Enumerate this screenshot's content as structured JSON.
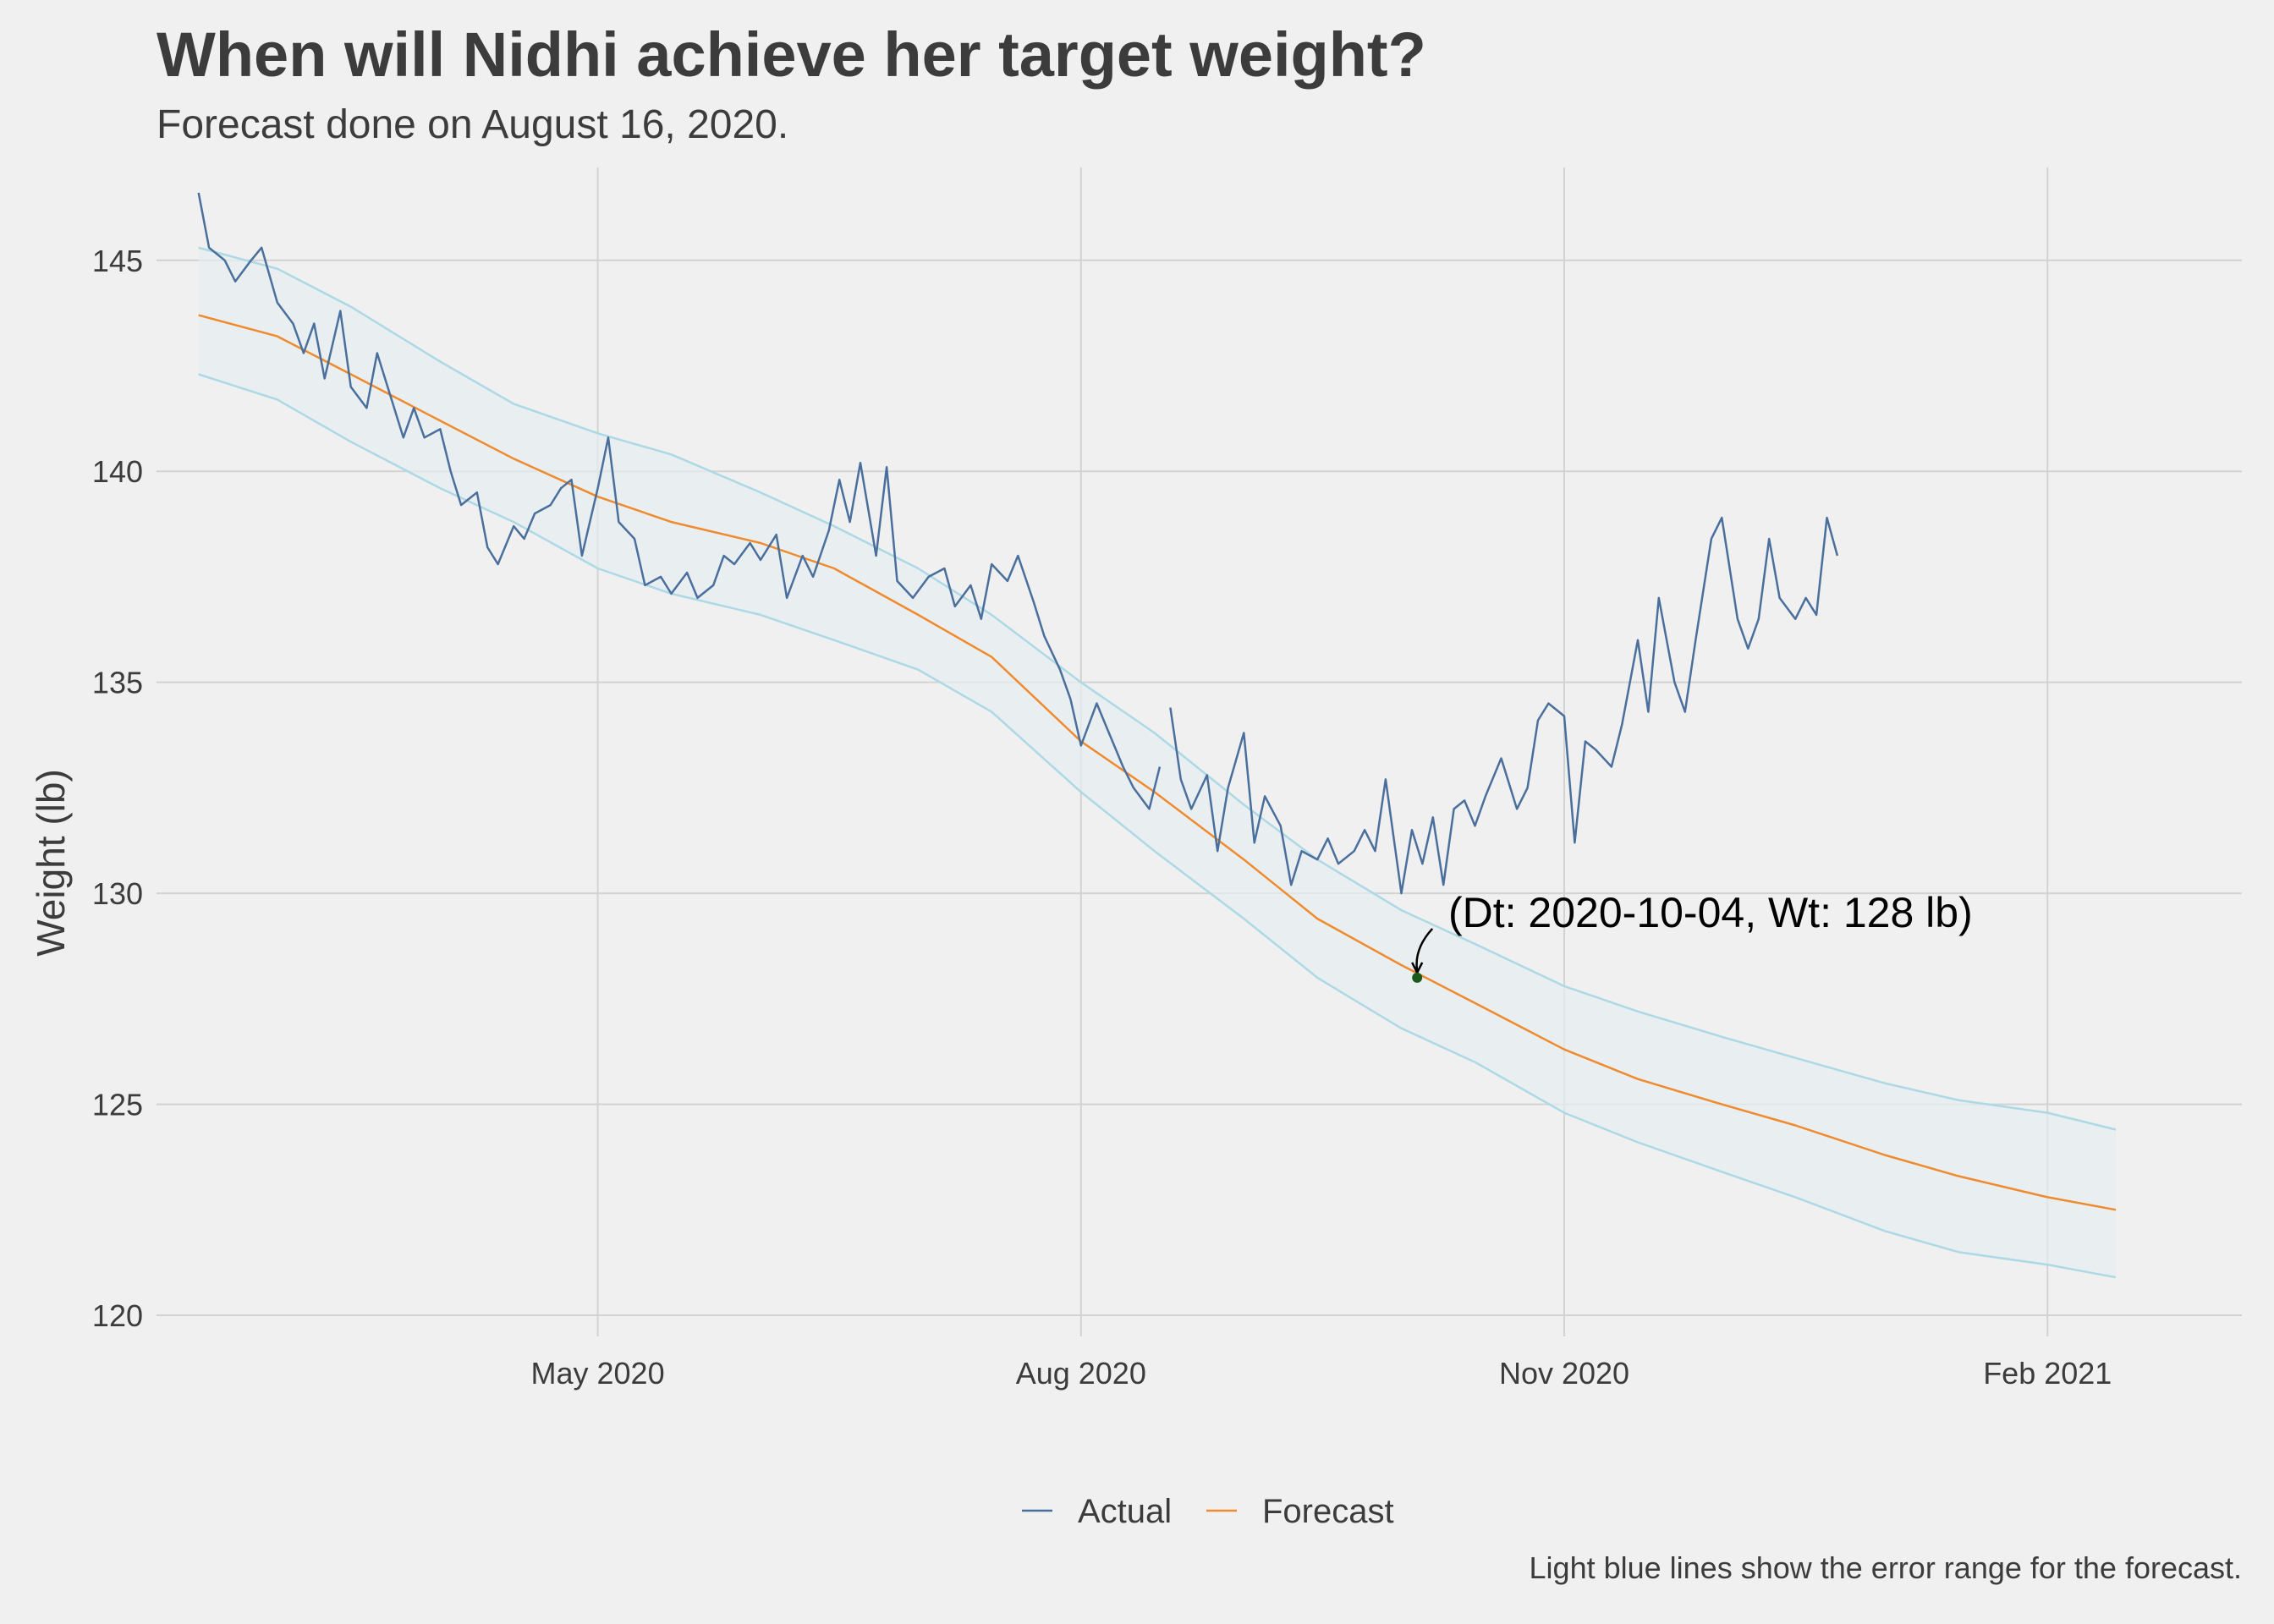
{
  "title": "When will Nidhi achieve her target weight?",
  "subtitle": "Forecast done on August 16, 2020.",
  "caption": "Light blue lines show the error range for the forecast.",
  "chart_data": {
    "type": "line",
    "title": "When will Nidhi achieve her target weight?",
    "subtitle": "Forecast done on August 16, 2020.",
    "xlabel": "",
    "ylabel": "Weight (lb)",
    "x_tick_labels": [
      "May 2020",
      "Aug 2020",
      "Nov 2020",
      "Feb 2021"
    ],
    "x_tick_dates": [
      "2020-05-01",
      "2020-08-01",
      "2020-11-01",
      "2021-02-01"
    ],
    "xlim": [
      "2020-02-07",
      "2021-03-10"
    ],
    "y_ticks": [
      120,
      125,
      130,
      135,
      140,
      145
    ],
    "ylim": [
      119.5,
      147.2
    ],
    "grid": true,
    "legend_position": "bottom",
    "annotation": {
      "text": "(Dt: 2020-10-04, Wt: 128 lb)",
      "date": "2020-10-04",
      "value": 128
    },
    "series": [
      {
        "name": "Actual",
        "color": "#4a6f9c",
        "points": [
          [
            "2020-02-15",
            146.6
          ],
          [
            "2020-02-17",
            145.3
          ],
          [
            "2020-02-20",
            145.0
          ],
          [
            "2020-02-22",
            144.5
          ],
          [
            "2020-02-25",
            145.0
          ],
          [
            "2020-02-27",
            145.3
          ],
          [
            "2020-03-01",
            144.0
          ],
          [
            "2020-03-04",
            143.5
          ],
          [
            "2020-03-06",
            142.8
          ],
          [
            "2020-03-08",
            143.5
          ],
          [
            "2020-03-10",
            142.2
          ],
          [
            "2020-03-13",
            143.8
          ],
          [
            "2020-03-15",
            142.0
          ],
          [
            "2020-03-18",
            141.5
          ],
          [
            "2020-03-20",
            142.8
          ],
          [
            "2020-03-22",
            142.0
          ],
          [
            "2020-03-25",
            140.8
          ],
          [
            "2020-03-27",
            141.5
          ],
          [
            "2020-03-29",
            140.8
          ],
          [
            "2020-04-01",
            141.0
          ],
          [
            "2020-04-03",
            140.0
          ],
          [
            "2020-04-05",
            139.2
          ],
          [
            "2020-04-08",
            139.5
          ],
          [
            "2020-04-10",
            138.2
          ],
          [
            "2020-04-12",
            137.8
          ],
          [
            "2020-04-15",
            138.7
          ],
          [
            "2020-04-17",
            138.4
          ],
          [
            "2020-04-19",
            139.0
          ],
          [
            "2020-04-22",
            139.2
          ],
          [
            "2020-04-24",
            139.6
          ],
          [
            "2020-04-26",
            139.8
          ],
          [
            "2020-04-28",
            138.0
          ],
          [
            "2020-05-01",
            139.6
          ],
          [
            "2020-05-03",
            140.8
          ],
          [
            "2020-05-05",
            138.8
          ],
          [
            "2020-05-08",
            138.4
          ],
          [
            "2020-05-10",
            137.3
          ],
          [
            "2020-05-13",
            137.5
          ],
          [
            "2020-05-15",
            137.1
          ],
          [
            "2020-05-18",
            137.6
          ],
          [
            "2020-05-20",
            137.0
          ],
          [
            "2020-05-23",
            137.3
          ],
          [
            "2020-05-25",
            138.0
          ],
          [
            "2020-05-27",
            137.8
          ],
          [
            "2020-05-30",
            138.3
          ],
          [
            "2020-06-01",
            137.9
          ],
          [
            "2020-06-04",
            138.5
          ],
          [
            "2020-06-06",
            137.0
          ],
          [
            "2020-06-09",
            138.0
          ],
          [
            "2020-06-11",
            137.5
          ],
          [
            "2020-06-14",
            138.6
          ],
          [
            "2020-06-16",
            139.8
          ],
          [
            "2020-06-18",
            138.8
          ],
          [
            "2020-06-20",
            140.2
          ],
          [
            "2020-06-23",
            138.0
          ],
          [
            "2020-06-25",
            140.1
          ],
          [
            "2020-06-27",
            137.4
          ],
          [
            "2020-06-30",
            137.0
          ],
          [
            "2020-07-03",
            137.5
          ],
          [
            "2020-07-06",
            137.7
          ],
          [
            "2020-07-08",
            136.8
          ],
          [
            "2020-07-11",
            137.3
          ],
          [
            "2020-07-13",
            136.5
          ],
          [
            "2020-07-15",
            137.8
          ],
          [
            "2020-07-18",
            137.4
          ],
          [
            "2020-07-20",
            138.0
          ],
          [
            "2020-07-23",
            136.9
          ],
          [
            "2020-07-25",
            136.1
          ],
          [
            "2020-07-28",
            135.3
          ],
          [
            "2020-07-30",
            134.6
          ],
          [
            "2020-08-01",
            133.5
          ],
          [
            "2020-08-04",
            134.5
          ],
          [
            "2020-08-06",
            133.9
          ],
          [
            "2020-08-09",
            133.0
          ],
          [
            "2020-08-11",
            132.5
          ],
          [
            "2020-08-14",
            132.0
          ],
          [
            "2020-08-16",
            133.0
          ]
        ]
      },
      {
        "name": "Actual (after forecast)",
        "color": "#4a6f9c",
        "points": [
          [
            "2020-08-18",
            134.4
          ],
          [
            "2020-08-20",
            132.7
          ],
          [
            "2020-08-22",
            132.0
          ],
          [
            "2020-08-25",
            132.8
          ],
          [
            "2020-08-27",
            131.0
          ],
          [
            "2020-08-29",
            132.5
          ],
          [
            "2020-09-01",
            133.8
          ],
          [
            "2020-09-03",
            131.2
          ],
          [
            "2020-09-05",
            132.3
          ],
          [
            "2020-09-08",
            131.6
          ],
          [
            "2020-09-10",
            130.2
          ],
          [
            "2020-09-12",
            131.0
          ],
          [
            "2020-09-15",
            130.8
          ],
          [
            "2020-09-17",
            131.3
          ],
          [
            "2020-09-19",
            130.7
          ],
          [
            "2020-09-22",
            131.0
          ],
          [
            "2020-09-24",
            131.5
          ],
          [
            "2020-09-26",
            131.0
          ],
          [
            "2020-09-28",
            132.7
          ],
          [
            "2020-10-01",
            130.0
          ],
          [
            "2020-10-03",
            131.5
          ],
          [
            "2020-10-05",
            130.7
          ],
          [
            "2020-10-07",
            131.8
          ],
          [
            "2020-10-09",
            130.2
          ],
          [
            "2020-10-11",
            132.0
          ],
          [
            "2020-10-13",
            132.2
          ],
          [
            "2020-10-15",
            131.6
          ],
          [
            "2020-10-17",
            132.3
          ],
          [
            "2020-10-20",
            133.2
          ],
          [
            "2020-10-23",
            132.0
          ],
          [
            "2020-10-25",
            132.5
          ],
          [
            "2020-10-27",
            134.1
          ],
          [
            "2020-10-29",
            134.5
          ],
          [
            "2020-11-01",
            134.2
          ],
          [
            "2020-11-03",
            131.2
          ],
          [
            "2020-11-05",
            133.6
          ],
          [
            "2020-11-07",
            133.4
          ],
          [
            "2020-11-10",
            133.0
          ],
          [
            "2020-11-12",
            134.0
          ],
          [
            "2020-11-15",
            136.0
          ],
          [
            "2020-11-17",
            134.3
          ],
          [
            "2020-11-19",
            137.0
          ],
          [
            "2020-11-22",
            135.0
          ],
          [
            "2020-11-24",
            134.3
          ],
          [
            "2020-11-26",
            136.0
          ],
          [
            "2020-11-29",
            138.4
          ],
          [
            "2020-12-01",
            138.9
          ],
          [
            "2020-12-04",
            136.5
          ],
          [
            "2020-12-06",
            135.8
          ],
          [
            "2020-12-08",
            136.5
          ],
          [
            "2020-12-10",
            138.4
          ],
          [
            "2020-12-12",
            137.0
          ],
          [
            "2020-12-15",
            136.5
          ],
          [
            "2020-12-17",
            137.0
          ],
          [
            "2020-12-19",
            136.6
          ],
          [
            "2020-12-21",
            138.9
          ],
          [
            "2020-12-23",
            138.0
          ]
        ]
      },
      {
        "name": "Forecast",
        "color": "#ef8a2f",
        "points": [
          [
            "2020-02-15",
            143.7
          ],
          [
            "2020-03-01",
            143.2
          ],
          [
            "2020-03-15",
            142.3
          ],
          [
            "2020-04-01",
            141.2
          ],
          [
            "2020-04-15",
            140.3
          ],
          [
            "2020-05-01",
            139.4
          ],
          [
            "2020-05-15",
            138.8
          ],
          [
            "2020-06-01",
            138.3
          ],
          [
            "2020-06-15",
            137.7
          ],
          [
            "2020-07-01",
            136.6
          ],
          [
            "2020-07-15",
            135.6
          ],
          [
            "2020-08-01",
            133.6
          ],
          [
            "2020-08-15",
            132.4
          ],
          [
            "2020-09-01",
            130.8
          ],
          [
            "2020-09-15",
            129.4
          ],
          [
            "2020-10-01",
            128.3
          ],
          [
            "2020-10-15",
            127.4
          ],
          [
            "2020-11-01",
            126.3
          ],
          [
            "2020-11-15",
            125.6
          ],
          [
            "2020-12-01",
            125.0
          ],
          [
            "2020-12-15",
            124.5
          ],
          [
            "2021-01-01",
            123.8
          ],
          [
            "2021-01-15",
            123.3
          ],
          [
            "2021-02-01",
            122.8
          ],
          [
            "2021-02-14",
            122.5
          ]
        ]
      },
      {
        "name": "Upper",
        "color": "#add8e6",
        "points": [
          [
            "2020-02-15",
            145.3
          ],
          [
            "2020-03-01",
            144.8
          ],
          [
            "2020-03-15",
            143.9
          ],
          [
            "2020-04-01",
            142.6
          ],
          [
            "2020-04-15",
            141.6
          ],
          [
            "2020-05-01",
            140.9
          ],
          [
            "2020-05-15",
            140.4
          ],
          [
            "2020-06-01",
            139.5
          ],
          [
            "2020-06-15",
            138.7
          ],
          [
            "2020-07-01",
            137.7
          ],
          [
            "2020-07-15",
            136.6
          ],
          [
            "2020-08-01",
            135.0
          ],
          [
            "2020-08-15",
            133.8
          ],
          [
            "2020-09-01",
            132.1
          ],
          [
            "2020-09-15",
            130.8
          ],
          [
            "2020-10-01",
            129.6
          ],
          [
            "2020-10-15",
            128.8
          ],
          [
            "2020-11-01",
            127.8
          ],
          [
            "2020-11-15",
            127.2
          ],
          [
            "2020-12-01",
            126.6
          ],
          [
            "2020-12-15",
            126.1
          ],
          [
            "2021-01-01",
            125.5
          ],
          [
            "2021-01-15",
            125.1
          ],
          [
            "2021-02-01",
            124.8
          ],
          [
            "2021-02-14",
            124.4
          ]
        ]
      },
      {
        "name": "Lower",
        "color": "#add8e6",
        "points": [
          [
            "2020-02-15",
            142.3
          ],
          [
            "2020-03-01",
            141.7
          ],
          [
            "2020-03-15",
            140.7
          ],
          [
            "2020-04-01",
            139.6
          ],
          [
            "2020-04-15",
            138.8
          ],
          [
            "2020-05-01",
            137.7
          ],
          [
            "2020-05-15",
            137.1
          ],
          [
            "2020-06-01",
            136.6
          ],
          [
            "2020-06-15",
            136.0
          ],
          [
            "2020-07-01",
            135.3
          ],
          [
            "2020-07-15",
            134.3
          ],
          [
            "2020-08-01",
            132.4
          ],
          [
            "2020-08-15",
            131.0
          ],
          [
            "2020-09-01",
            129.4
          ],
          [
            "2020-09-15",
            128.0
          ],
          [
            "2020-10-01",
            126.8
          ],
          [
            "2020-10-15",
            126.0
          ],
          [
            "2020-11-01",
            124.8
          ],
          [
            "2020-11-15",
            124.1
          ],
          [
            "2020-12-01",
            123.4
          ],
          [
            "2020-12-15",
            122.8
          ],
          [
            "2021-01-01",
            122.0
          ],
          [
            "2021-01-15",
            121.5
          ],
          [
            "2021-02-01",
            121.2
          ],
          [
            "2021-02-14",
            120.9
          ]
        ]
      }
    ],
    "legend": [
      {
        "label": "Actual",
        "color": "#4a6f9c"
      },
      {
        "label": "Forecast",
        "color": "#ef8a2f"
      }
    ]
  }
}
